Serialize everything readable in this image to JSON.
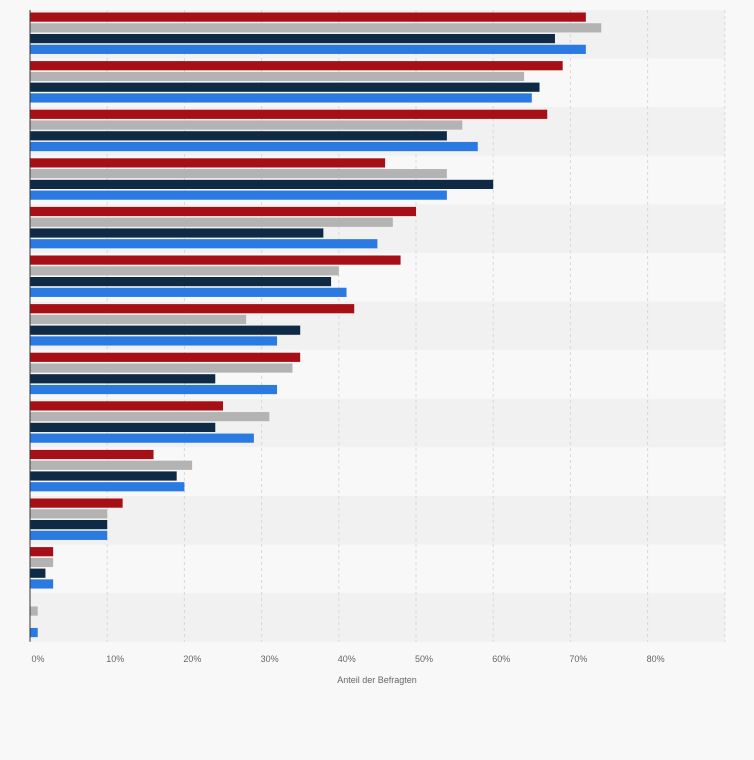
{
  "chart_data": {
    "type": "bar",
    "orientation": "horizontal",
    "title": "",
    "xlabel": "Anteil der Befragten",
    "ylabel": "",
    "xlim": [
      0,
      90
    ],
    "x_ticks": [
      0,
      10,
      20,
      30,
      40,
      50,
      60,
      70,
      80
    ],
    "x_tick_labels": [
      "0%",
      "10%",
      "20%",
      "30%",
      "40%",
      "50%",
      "60%",
      "70%",
      "80%"
    ],
    "grid": true,
    "legend": "none",
    "category_count": 13,
    "series": [
      {
        "color": "#a50f15",
        "values": [
          72,
          69,
          67,
          46,
          50,
          48,
          42,
          35,
          25,
          16,
          12,
          3,
          0
        ]
      },
      {
        "color": "#b3b3b3",
        "values": [
          74,
          64,
          56,
          54,
          47,
          40,
          28,
          34,
          31,
          21,
          10,
          3,
          1
        ]
      },
      {
        "color": "#0f2a44",
        "values": [
          68,
          66,
          54,
          60,
          38,
          39,
          35,
          24,
          24,
          19,
          10,
          2,
          0
        ]
      },
      {
        "color": "#2a7ae2",
        "values": [
          72,
          65,
          58,
          54,
          45,
          41,
          32,
          32,
          29,
          20,
          10,
          3,
          1
        ]
      }
    ]
  }
}
